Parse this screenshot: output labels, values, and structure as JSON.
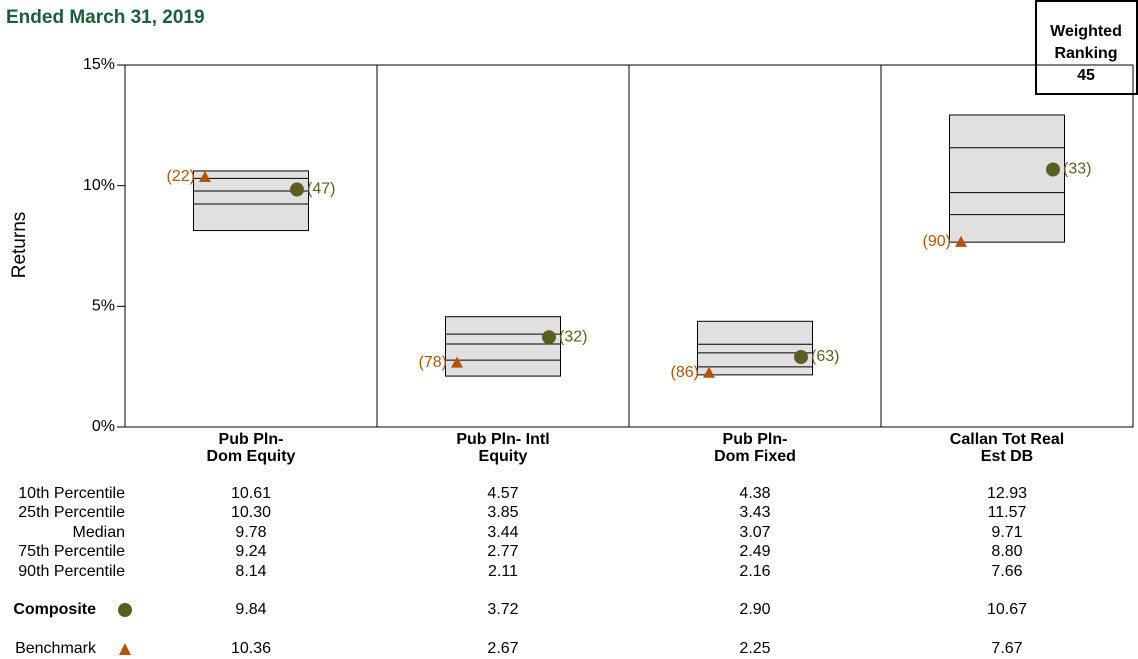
{
  "chart_data": {
    "type": "floating_box",
    "title": "Ended March 31, 2019",
    "y_label": "Returns",
    "categories": [
      [
        "Pub Pln-",
        "Dom Equity"
      ],
      [
        "Pub Pln- Intl",
        "Equity"
      ],
      [
        "Pub Pln-",
        "Dom Fixed"
      ],
      [
        "Callan Tot Real",
        "Est DB"
      ]
    ],
    "ylim": [
      0,
      15
    ],
    "yticks": [
      {
        "value": 0,
        "label": "0%"
      },
      {
        "value": 5,
        "label": "5%"
      },
      {
        "value": 10,
        "label": "10%"
      },
      {
        "value": 15,
        "label": "15%"
      }
    ],
    "box_color": "#e0e0e0",
    "percentiles": [
      {
        "name": "10th Percentile",
        "values": [
          10.61,
          4.57,
          4.38,
          12.93
        ],
        "value_labels": [
          "10.61",
          "4.57",
          "4.38",
          "12.93"
        ]
      },
      {
        "name": "25th Percentile",
        "values": [
          10.3,
          3.85,
          3.43,
          11.57
        ],
        "value_labels": [
          "10.30",
          "3.85",
          "3.43",
          "11.57"
        ]
      },
      {
        "name": "Median",
        "values": [
          9.78,
          3.44,
          3.07,
          9.71
        ],
        "value_labels": [
          "9.78",
          "3.44",
          "3.07",
          "9.71"
        ]
      },
      {
        "name": "75th Percentile",
        "values": [
          9.24,
          2.77,
          2.49,
          8.8
        ],
        "value_labels": [
          "9.24",
          "2.77",
          "2.49",
          "8.80"
        ]
      },
      {
        "name": "90th Percentile",
        "values": [
          8.14,
          2.11,
          2.16,
          7.66
        ],
        "value_labels": [
          "8.14",
          "2.11",
          "2.16",
          "7.66"
        ]
      }
    ],
    "series": [
      {
        "name": "Composite",
        "color": "#5c5e21",
        "marker": "circle",
        "values": [
          9.84,
          3.72,
          2.9,
          10.67
        ],
        "value_labels": [
          "9.84",
          "3.72",
          "2.90",
          "10.67"
        ],
        "rank_labels": [
          "(47)",
          "(32)",
          "(63)",
          "(33)"
        ]
      },
      {
        "name": "Benchmark",
        "color": "#b5530a",
        "marker": "triangle",
        "values": [
          10.36,
          2.67,
          2.25,
          7.67
        ],
        "value_labels": [
          "10.36",
          "2.67",
          "2.25",
          "7.67"
        ],
        "rank_labels": [
          "(22)",
          "(78)",
          "(86)",
          "(90)"
        ]
      }
    ],
    "weighted_ranking": {
      "label": [
        "Weighted",
        "Ranking"
      ],
      "value": 45
    }
  }
}
